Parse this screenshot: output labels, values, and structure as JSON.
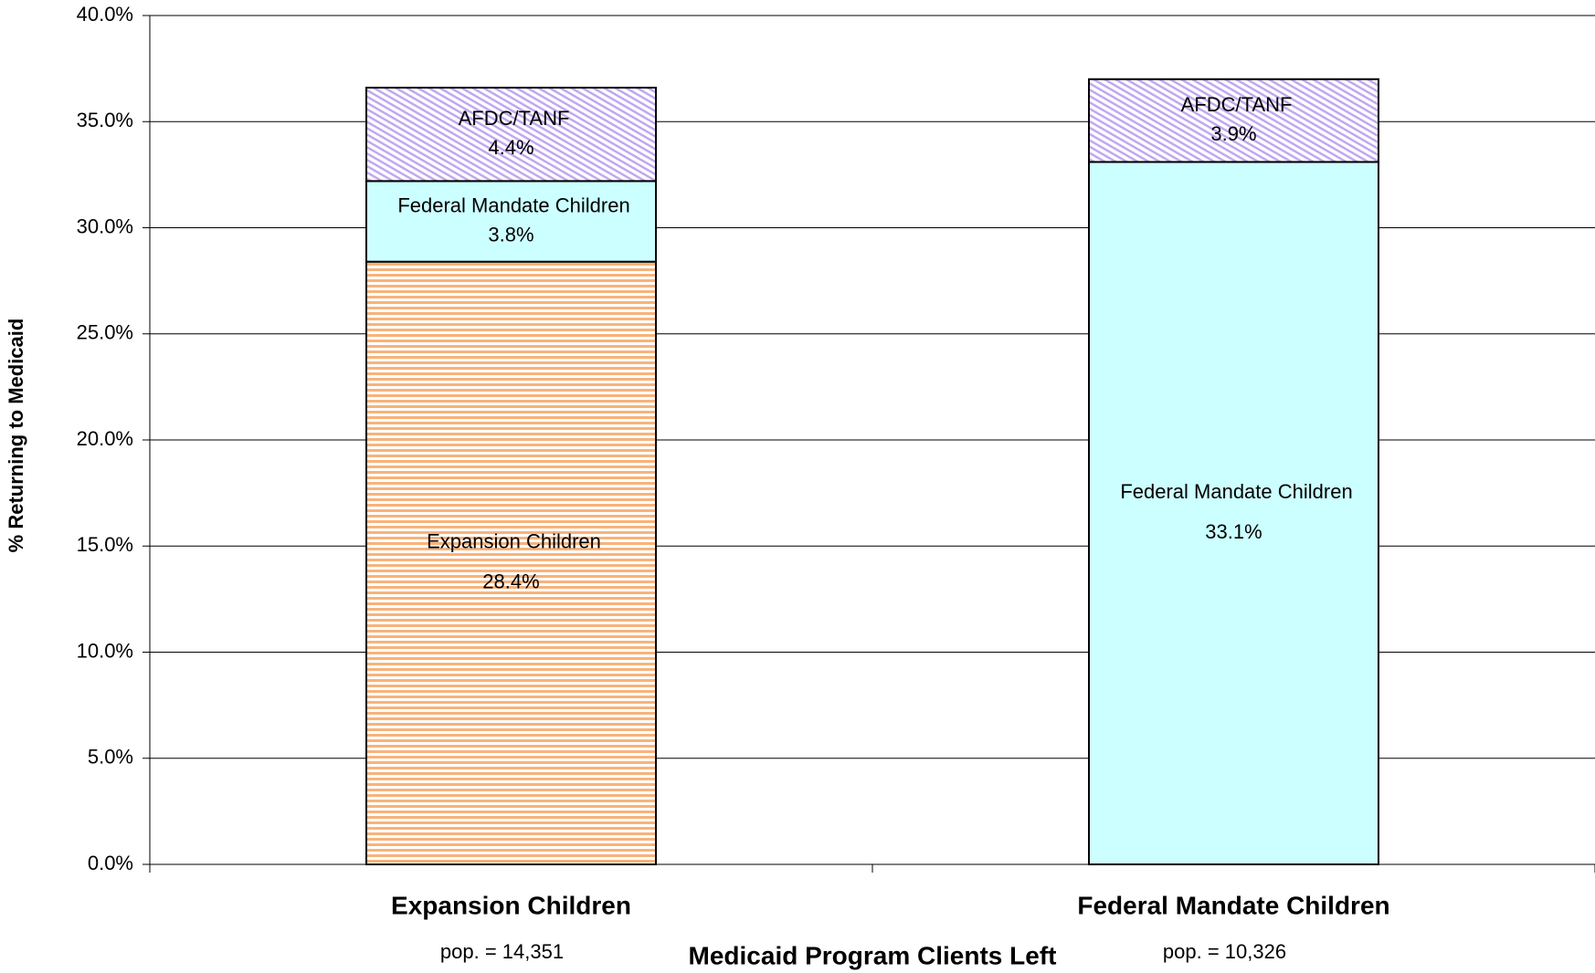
{
  "chart_data": {
    "type": "bar",
    "stacked": true,
    "x_label": "Medicaid Program Clients Left",
    "y_label": "% Returning to Medicaid",
    "categories": [
      "Expansion Children",
      "Federal Mandate Children"
    ],
    "category_notes": [
      "pop. = 14,351",
      "pop. = 10,326"
    ],
    "series": [
      {
        "name": "Expansion Children",
        "color": "#f8b27a",
        "pattern": "horizontal-stripes",
        "values": [
          28.4,
          null
        ],
        "value_labels": [
          "28.4%",
          null
        ]
      },
      {
        "name": "Federal Mandate Children",
        "color": "#ccffff",
        "pattern": "solid",
        "values": [
          3.8,
          33.1
        ],
        "value_labels": [
          "3.8%",
          "33.1%"
        ]
      },
      {
        "name": "AFDC/TANF",
        "color": "#c0a8f0",
        "pattern": "diagonal-hatch",
        "values": [
          4.4,
          3.9
        ],
        "value_labels": [
          "4.4%",
          "3.9%"
        ]
      }
    ],
    "ylim": [
      0,
      40
    ],
    "yticks": [
      {
        "value": 0,
        "label": "0.0%"
      },
      {
        "value": 5,
        "label": "5.0%"
      },
      {
        "value": 10,
        "label": "10.0%"
      },
      {
        "value": 15,
        "label": "15.0%"
      },
      {
        "value": 20,
        "label": "20.0%"
      },
      {
        "value": 25,
        "label": "25.0%"
      },
      {
        "value": 30,
        "label": "30.0%"
      },
      {
        "value": 35,
        "label": "35.0%"
      },
      {
        "value": 40,
        "label": "40.0%"
      }
    ],
    "grid": true
  }
}
